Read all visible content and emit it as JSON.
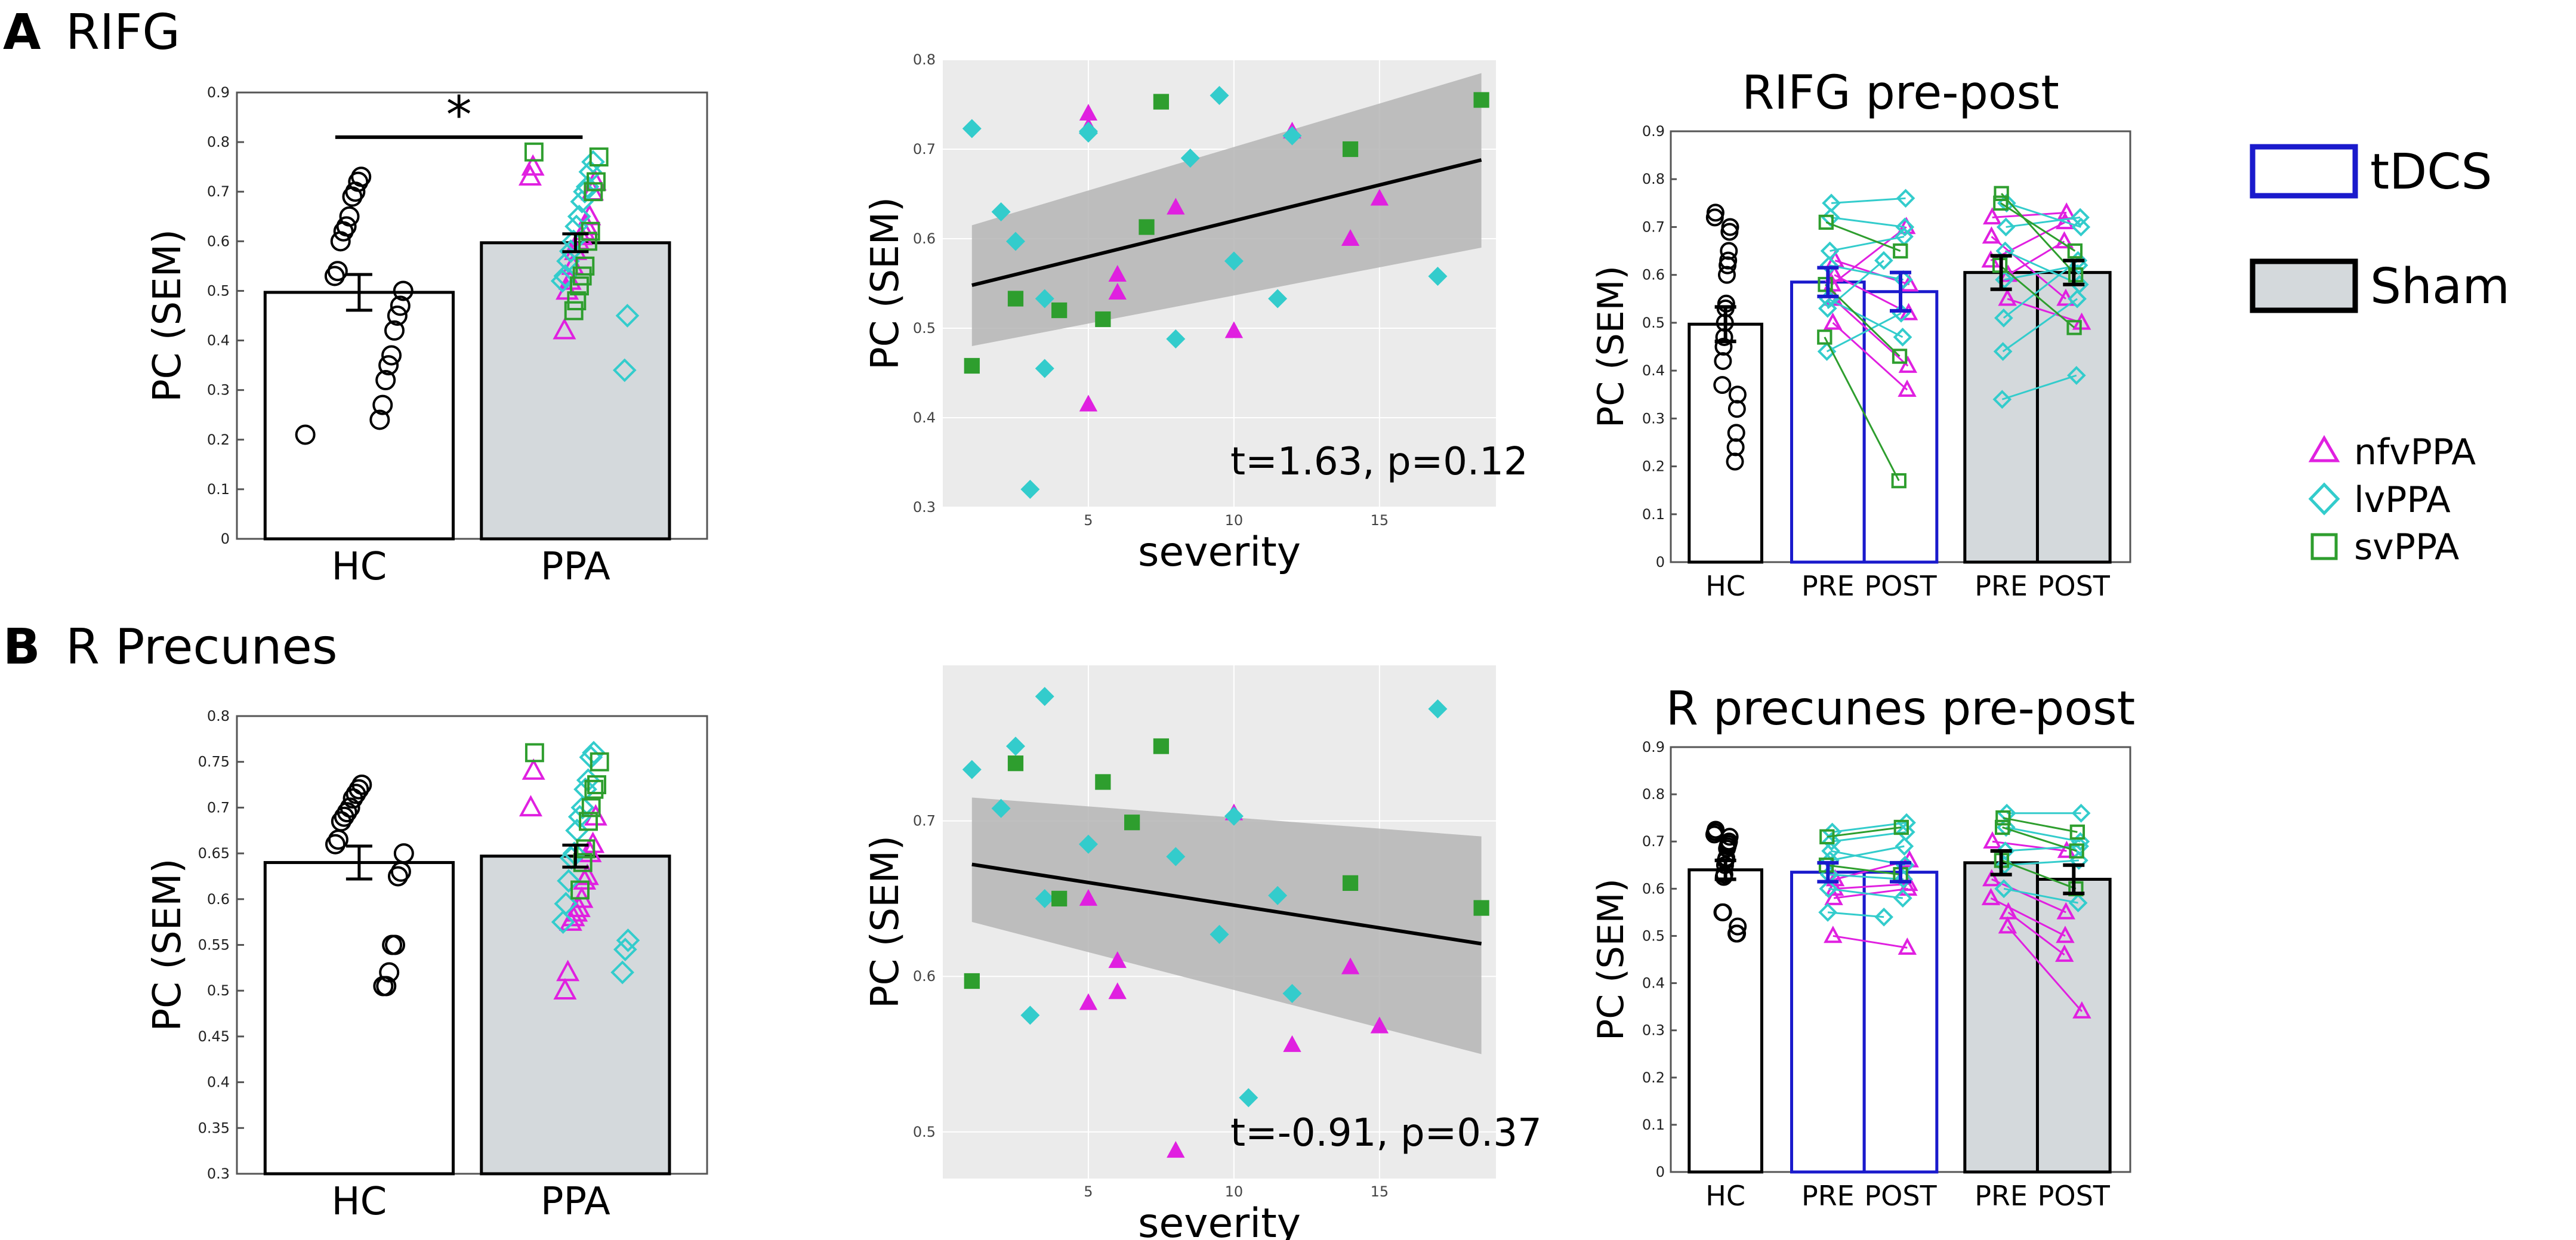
{
  "panel_a": {
    "letter": "A",
    "title": "RIFG"
  },
  "panel_b": {
    "letter": "B",
    "title": "R Precunes"
  },
  "legend": {
    "tdcs": "tDCS",
    "sham": "Sham",
    "nfvppa": "nfvPPA",
    "lvppa": "lvPPA",
    "svppa": "svPPA"
  },
  "colors": {
    "nfvppa": "#e020e0",
    "lvppa": "#33cccc",
    "svppa": "#2e9e2e",
    "tdcs": "#1a1acc",
    "sham_fill": "#d4d9dc",
    "regression": "#000000",
    "ci_band": "#b5b5b5",
    "panel_bg": "#ebebeb"
  },
  "chart_data": [
    {
      "id": "a_bar",
      "type": "bar",
      "title": "",
      "xlabel": "",
      "ylabel": "PC (SEM)",
      "ylim": [
        0,
        0.9
      ],
      "yticks": [
        0,
        0.1,
        0.2,
        0.3,
        0.4,
        0.5,
        0.6,
        0.7,
        0.8,
        0.9
      ],
      "categories": [
        "HC",
        "PPA"
      ],
      "values": [
        0.497,
        0.597
      ],
      "sem": [
        0.036,
        0.018
      ],
      "significance": "*",
      "points": {
        "HC": [
          0.73,
          0.72,
          0.7,
          0.69,
          0.65,
          0.63,
          0.62,
          0.6,
          0.54,
          0.53,
          0.5,
          0.47,
          0.45,
          0.42,
          0.37,
          0.35,
          0.32,
          0.27,
          0.24,
          0.21
        ],
        "PPA": {
          "nfvPPA": [
            0.75,
            0.73,
            0.72,
            0.7,
            0.65,
            0.63,
            0.62,
            0.61,
            0.6,
            0.58,
            0.55,
            0.52,
            0.5,
            0.42
          ],
          "lvPPA": [
            0.76,
            0.74,
            0.71,
            0.7,
            0.68,
            0.65,
            0.63,
            0.6,
            0.58,
            0.56,
            0.53,
            0.52,
            0.45,
            0.34
          ],
          "svPPA": [
            0.78,
            0.77,
            0.72,
            0.7,
            0.62,
            0.6,
            0.55,
            0.53,
            0.51,
            0.48,
            0.46
          ]
        }
      }
    },
    {
      "id": "a_scatter",
      "type": "scatter",
      "xlabel": "severity",
      "ylabel": "PC (SEM)",
      "xlim": [
        0,
        19
      ],
      "ylim": [
        0.3,
        0.8
      ],
      "xticks": [
        5,
        10,
        15
      ],
      "yticks": [
        0.3,
        0.4,
        0.5,
        0.6,
        0.7,
        0.8
      ],
      "annotation": "t=1.63, p=0.12",
      "fit": {
        "x": [
          1,
          18.5
        ],
        "y": [
          0.548,
          0.688
        ],
        "ci_lower": [
          0.48,
          0.59
        ],
        "ci_upper": [
          0.615,
          0.785
        ]
      },
      "series": [
        {
          "name": "nfvPPA",
          "points": [
            [
              5,
              0.74
            ],
            [
              5,
              0.725
            ],
            [
              6,
              0.56
            ],
            [
              6,
              0.54
            ],
            [
              8,
              0.635
            ],
            [
              5,
              0.415
            ],
            [
              10,
              0.497
            ],
            [
              12,
              0.72
            ],
            [
              14,
              0.6
            ],
            [
              15,
              0.645
            ]
          ]
        },
        {
          "name": "lvPPA",
          "points": [
            [
              1,
              0.723
            ],
            [
              2,
              0.63
            ],
            [
              2.5,
              0.597
            ],
            [
              3,
              0.32
            ],
            [
              3.5,
              0.455
            ],
            [
              3.5,
              0.533
            ],
            [
              5,
              0.72
            ],
            [
              5,
              0.718
            ],
            [
              8,
              0.488
            ],
            [
              8.5,
              0.69
            ],
            [
              9.5,
              0.76
            ],
            [
              10,
              0.575
            ],
            [
              11.5,
              0.533
            ],
            [
              12,
              0.715
            ],
            [
              17,
              0.558
            ]
          ]
        },
        {
          "name": "svPPA",
          "points": [
            [
              1,
              0.458
            ],
            [
              2.5,
              0.533
            ],
            [
              4,
              0.52
            ],
            [
              5.5,
              0.51
            ],
            [
              7,
              0.613
            ],
            [
              7.5,
              0.753
            ],
            [
              14,
              0.7
            ],
            [
              18.5,
              0.755
            ]
          ]
        }
      ]
    },
    {
      "id": "a_prepost",
      "type": "bar",
      "title": "RIFG pre-post",
      "ylabel": "PC (SEM)",
      "ylim": [
        0,
        0.9
      ],
      "yticks": [
        0,
        0.1,
        0.2,
        0.3,
        0.4,
        0.5,
        0.6,
        0.7,
        0.8,
        0.9
      ],
      "categories": [
        "HC",
        "PRE",
        "POST",
        "PRE",
        "POST"
      ],
      "groups": [
        "HC",
        "tDCS",
        "tDCS",
        "Sham",
        "Sham"
      ],
      "values": [
        0.497,
        0.585,
        0.565,
        0.605,
        0.605
      ],
      "sem": [
        0.036,
        0.03,
        0.04,
        0.035,
        0.025
      ],
      "hc_points": [
        0.73,
        0.72,
        0.7,
        0.69,
        0.65,
        0.63,
        0.62,
        0.6,
        0.54,
        0.53,
        0.5,
        0.47,
        0.45,
        0.42,
        0.37,
        0.35,
        0.32,
        0.27,
        0.24,
        0.21
      ],
      "pairs": {
        "tDCS": [
          {
            "group": "nfvPPA",
            "pre": 0.63,
            "post": 0.58
          },
          {
            "group": "nfvPPA",
            "pre": 0.6,
            "post": 0.52
          },
          {
            "group": "nfvPPA",
            "pre": 0.55,
            "post": 0.41
          },
          {
            "group": "nfvPPA",
            "pre": 0.5,
            "post": 0.36
          },
          {
            "group": "nfvPPA",
            "pre": 0.58,
            "post": 0.7
          },
          {
            "group": "lvPPA",
            "pre": 0.75,
            "post": 0.76
          },
          {
            "group": "lvPPA",
            "pre": 0.72,
            "post": 0.7
          },
          {
            "group": "lvPPA",
            "pre": 0.65,
            "post": 0.68
          },
          {
            "group": "lvPPA",
            "pre": 0.62,
            "post": 0.59
          },
          {
            "group": "lvPPA",
            "pre": 0.55,
            "post": 0.47
          },
          {
            "group": "lvPPA",
            "pre": 0.53,
            "post": 0.63
          },
          {
            "group": "lvPPA",
            "pre": 0.44,
            "post": 0.52
          },
          {
            "group": "svPPA",
            "pre": 0.71,
            "post": 0.65
          },
          {
            "group": "svPPA",
            "pre": 0.58,
            "post": 0.43
          },
          {
            "group": "svPPA",
            "pre": 0.47,
            "post": 0.17
          }
        ],
        "Sham": [
          {
            "group": "nfvPPA",
            "pre": 0.72,
            "post": 0.73
          },
          {
            "group": "nfvPPA",
            "pre": 0.68,
            "post": 0.55
          },
          {
            "group": "nfvPPA",
            "pre": 0.63,
            "post": 0.71
          },
          {
            "group": "nfvPPA",
            "pre": 0.6,
            "post": 0.67
          },
          {
            "group": "nfvPPA",
            "pre": 0.55,
            "post": 0.5
          },
          {
            "group": "lvPPA",
            "pre": 0.75,
            "post": 0.7
          },
          {
            "group": "lvPPA",
            "pre": 0.7,
            "post": 0.72
          },
          {
            "group": "lvPPA",
            "pre": 0.65,
            "post": 0.58
          },
          {
            "group": "lvPPA",
            "pre": 0.59,
            "post": 0.62
          },
          {
            "group": "lvPPA",
            "pre": 0.51,
            "post": 0.63
          },
          {
            "group": "lvPPA",
            "pre": 0.44,
            "post": 0.55
          },
          {
            "group": "lvPPA",
            "pre": 0.34,
            "post": 0.39
          },
          {
            "group": "svPPA",
            "pre": 0.77,
            "post": 0.6
          },
          {
            "group": "svPPA",
            "pre": 0.75,
            "post": 0.65
          },
          {
            "group": "svPPA",
            "pre": 0.62,
            "post": 0.49
          }
        ]
      }
    },
    {
      "id": "b_bar",
      "type": "bar",
      "title": "",
      "xlabel": "",
      "ylabel": "PC (SEM)",
      "ylim": [
        0.3,
        0.8
      ],
      "yticks": [
        0.3,
        0.35,
        0.4,
        0.45,
        0.5,
        0.55,
        0.6,
        0.65,
        0.7,
        0.75,
        0.8
      ],
      "categories": [
        "HC",
        "PPA"
      ],
      "values": [
        0.64,
        0.647
      ],
      "sem": [
        0.018,
        0.012
      ],
      "points": {
        "HC": [
          0.725,
          0.72,
          0.715,
          0.71,
          0.7,
          0.695,
          0.69,
          0.685,
          0.665,
          0.66,
          0.65,
          0.63,
          0.625,
          0.55,
          0.55,
          0.52,
          0.505,
          0.505
        ],
        "PPA": {
          "nfvPPA": [
            0.74,
            0.7,
            0.69,
            0.66,
            0.65,
            0.625,
            0.62,
            0.6,
            0.59,
            0.585,
            0.58,
            0.575,
            0.52,
            0.5
          ],
          "lvPPA": [
            0.76,
            0.755,
            0.73,
            0.72,
            0.7,
            0.69,
            0.675,
            0.65,
            0.645,
            0.62,
            0.595,
            0.575,
            0.555,
            0.545,
            0.52
          ],
          "svPPA": [
            0.76,
            0.75,
            0.725,
            0.72,
            0.7,
            0.685,
            0.655,
            0.64,
            0.61
          ]
        }
      }
    },
    {
      "id": "b_scatter",
      "type": "scatter",
      "xlabel": "severity",
      "ylabel": "PC (SEM)",
      "xlim": [
        0,
        19
      ],
      "ylim": [
        0.47,
        0.8
      ],
      "xticks": [
        5,
        10,
        15
      ],
      "yticks": [
        0.5,
        0.6,
        0.7
      ],
      "annotation": "t=-0.91, p=0.37",
      "fit": {
        "x": [
          1,
          18.5
        ],
        "y": [
          0.672,
          0.621
        ],
        "ci_lower": [
          0.635,
          0.55
        ],
        "ci_upper": [
          0.715,
          0.69
        ]
      },
      "series": [
        {
          "name": "nfvPPA",
          "points": [
            [
              5,
              0.583
            ],
            [
              6,
              0.61
            ],
            [
              6,
              0.59
            ],
            [
              8,
              0.488
            ],
            [
              10,
              0.705
            ],
            [
              12,
              0.556
            ],
            [
              14,
              0.606
            ],
            [
              15,
              0.568
            ],
            [
              5,
              0.65
            ]
          ]
        },
        {
          "name": "lvPPA",
          "points": [
            [
              1,
              0.733
            ],
            [
              2,
              0.708
            ],
            [
              2.5,
              0.748
            ],
            [
              3,
              0.575
            ],
            [
              3.5,
              0.65
            ],
            [
              3.5,
              0.78
            ],
            [
              5,
              0.685
            ],
            [
              8,
              0.677
            ],
            [
              9.5,
              0.627
            ],
            [
              10,
              0.703
            ],
            [
              10.5,
              0.522
            ],
            [
              11.5,
              0.652
            ],
            [
              12,
              0.589
            ],
            [
              17,
              0.772
            ]
          ]
        },
        {
          "name": "svPPA",
          "points": [
            [
              1,
              0.597
            ],
            [
              2.5,
              0.737
            ],
            [
              4,
              0.65
            ],
            [
              5.5,
              0.725
            ],
            [
              6.5,
              0.699
            ],
            [
              7.5,
              0.748
            ],
            [
              14,
              0.66
            ],
            [
              18.5,
              0.644
            ]
          ]
        }
      ]
    },
    {
      "id": "b_prepost",
      "type": "bar",
      "title": "R precunes pre-post",
      "ylabel": "PC (SEM)",
      "ylim": [
        0,
        0.9
      ],
      "yticks": [
        0,
        0.1,
        0.2,
        0.3,
        0.4,
        0.5,
        0.6,
        0.7,
        0.8,
        0.9
      ],
      "categories": [
        "HC",
        "PRE",
        "POST",
        "PRE",
        "POST"
      ],
      "groups": [
        "HC",
        "tDCS",
        "tDCS",
        "Sham",
        "Sham"
      ],
      "values": [
        0.64,
        0.635,
        0.635,
        0.655,
        0.62
      ],
      "sem": [
        0.02,
        0.02,
        0.02,
        0.025,
        0.03
      ],
      "hc_points": [
        0.725,
        0.72,
        0.715,
        0.71,
        0.7,
        0.695,
        0.69,
        0.685,
        0.665,
        0.66,
        0.65,
        0.63,
        0.625,
        0.55,
        0.55,
        0.52,
        0.505,
        0.505
      ],
      "pairs": {
        "tDCS": [
          {
            "group": "nfvPPA",
            "pre": 0.62,
            "post": 0.66
          },
          {
            "group": "nfvPPA",
            "pre": 0.6,
            "post": 0.61
          },
          {
            "group": "nfvPPA",
            "pre": 0.58,
            "post": 0.6
          },
          {
            "group": "nfvPPA",
            "pre": 0.5,
            "post": 0.475
          },
          {
            "group": "lvPPA",
            "pre": 0.72,
            "post": 0.74
          },
          {
            "group": "lvPPA",
            "pre": 0.7,
            "post": 0.72
          },
          {
            "group": "lvPPA",
            "pre": 0.68,
            "post": 0.65
          },
          {
            "group": "lvPPA",
            "pre": 0.66,
            "post": 0.69
          },
          {
            "group": "lvPPA",
            "pre": 0.63,
            "post": 0.62
          },
          {
            "group": "lvPPA",
            "pre": 0.6,
            "post": 0.58
          },
          {
            "group": "lvPPA",
            "pre": 0.55,
            "post": 0.54
          },
          {
            "group": "svPPA",
            "pre": 0.71,
            "post": 0.73
          },
          {
            "group": "svPPA",
            "pre": 0.65,
            "post": 0.63
          }
        ],
        "Sham": [
          {
            "group": "nfvPPA",
            "pre": 0.7,
            "post": 0.68
          },
          {
            "group": "nfvPPA",
            "pre": 0.62,
            "post": 0.55
          },
          {
            "group": "nfvPPA",
            "pre": 0.58,
            "post": 0.5
          },
          {
            "group": "nfvPPA",
            "pre": 0.55,
            "post": 0.46
          },
          {
            "group": "nfvPPA",
            "pre": 0.52,
            "post": 0.34
          },
          {
            "group": "lvPPA",
            "pre": 0.76,
            "post": 0.76
          },
          {
            "group": "lvPPA",
            "pre": 0.73,
            "post": 0.7
          },
          {
            "group": "lvPPA",
            "pre": 0.68,
            "post": 0.69
          },
          {
            "group": "lvPPA",
            "pre": 0.65,
            "post": 0.66
          },
          {
            "group": "lvPPA",
            "pre": 0.6,
            "post": 0.57
          },
          {
            "group": "svPPA",
            "pre": 0.75,
            "post": 0.72
          },
          {
            "group": "svPPA",
            "pre": 0.73,
            "post": 0.68
          },
          {
            "group": "svPPA",
            "pre": 0.66,
            "post": 0.6
          }
        ]
      }
    }
  ]
}
